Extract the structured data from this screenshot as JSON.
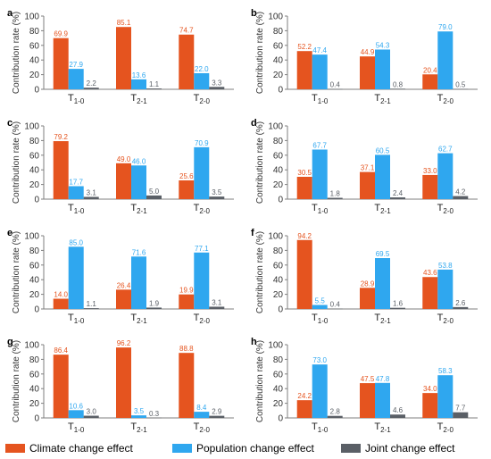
{
  "colors": {
    "climate": "#e5541f",
    "population": "#2fa7ef",
    "joint": "#5a5f66",
    "axis": "#7f7f7f"
  },
  "legend": [
    {
      "label": "Climate change effect",
      "color": "#e5541f"
    },
    {
      "label": "Population change effect",
      "color": "#2fa7ef"
    },
    {
      "label": "Joint change effect",
      "color": "#5a5f66"
    }
  ],
  "chart_data": [
    {
      "panel": "a",
      "type": "bar",
      "ylabel": "Contribution rate (%)",
      "ylim": [
        0,
        100
      ],
      "yticks": [
        0,
        20,
        40,
        60,
        80,
        100
      ],
      "categories": [
        "T1-0",
        "T2-1",
        "T2-0"
      ],
      "series": [
        {
          "name": "Climate change effect",
          "values": [
            69.9,
            85.1,
            74.7
          ]
        },
        {
          "name": "Population change effect",
          "values": [
            27.9,
            13.6,
            22.0
          ]
        },
        {
          "name": "Joint change effect",
          "values": [
            2.2,
            1.1,
            3.3
          ]
        }
      ]
    },
    {
      "panel": "b",
      "type": "bar",
      "ylabel": "Contribution rate (%)",
      "ylim": [
        0,
        100
      ],
      "yticks": [
        0,
        20,
        40,
        60,
        80,
        100
      ],
      "categories": [
        "T1-0",
        "T2-1",
        "T2-0"
      ],
      "series": [
        {
          "name": "Climate change effect",
          "values": [
            52.2,
            44.9,
            20.4
          ]
        },
        {
          "name": "Population change effect",
          "values": [
            47.4,
            54.3,
            79.0
          ]
        },
        {
          "name": "Joint change effect",
          "values": [
            0.4,
            0.8,
            0.5
          ]
        }
      ]
    },
    {
      "panel": "c",
      "type": "bar",
      "ylabel": "Contribution rate (%)",
      "ylim": [
        0,
        100
      ],
      "yticks": [
        0,
        20,
        40,
        60,
        80,
        100
      ],
      "categories": [
        "T1-0",
        "T2-1",
        "T2-0"
      ],
      "series": [
        {
          "name": "Climate change effect",
          "values": [
            79.2,
            49.0,
            25.6
          ]
        },
        {
          "name": "Population change effect",
          "values": [
            17.7,
            46.0,
            70.9
          ]
        },
        {
          "name": "Joint change effect",
          "values": [
            3.1,
            5.0,
            3.5
          ]
        }
      ]
    },
    {
      "panel": "d",
      "type": "bar",
      "ylabel": "Contribution rate (%)",
      "ylim": [
        0,
        100
      ],
      "yticks": [
        0,
        20,
        40,
        60,
        80,
        100
      ],
      "categories": [
        "T1-0",
        "T2-1",
        "T2-0"
      ],
      "series": [
        {
          "name": "Climate change effect",
          "values": [
            30.5,
            37.1,
            33.0
          ]
        },
        {
          "name": "Population change effect",
          "values": [
            67.7,
            60.5,
            62.7
          ]
        },
        {
          "name": "Joint change effect",
          "values": [
            1.8,
            2.4,
            4.2
          ]
        }
      ]
    },
    {
      "panel": "e",
      "type": "bar",
      "ylabel": "Contribution rate (%)",
      "ylim": [
        0,
        100
      ],
      "yticks": [
        0,
        20,
        40,
        60,
        80,
        100
      ],
      "categories": [
        "T1-0",
        "T2-1",
        "T2-0"
      ],
      "series": [
        {
          "name": "Climate change effect",
          "values": [
            14.0,
            26.4,
            19.9
          ]
        },
        {
          "name": "Population change effect",
          "values": [
            85.0,
            71.6,
            77.1
          ]
        },
        {
          "name": "Joint change effect",
          "values": [
            1.1,
            1.9,
            3.1
          ]
        }
      ]
    },
    {
      "panel": "f",
      "type": "bar",
      "ylabel": "Contribution rate (%)",
      "ylim": [
        0,
        100
      ],
      "yticks": [
        0,
        20,
        40,
        60,
        80,
        100
      ],
      "categories": [
        "T1-0",
        "T2-1",
        "T2-0"
      ],
      "series": [
        {
          "name": "Climate change effect",
          "values": [
            94.2,
            28.9,
            43.6
          ]
        },
        {
          "name": "Population change effect",
          "values": [
            5.5,
            69.5,
            53.8
          ]
        },
        {
          "name": "Joint change effect",
          "values": [
            0.4,
            1.6,
            2.6
          ]
        }
      ]
    },
    {
      "panel": "g",
      "type": "bar",
      "ylabel": "Contribution rate (%)",
      "ylim": [
        0,
        100
      ],
      "yticks": [
        0,
        20,
        40,
        60,
        80,
        100
      ],
      "categories": [
        "T1-0",
        "T2-1",
        "T2-0"
      ],
      "series": [
        {
          "name": "Climate change effect",
          "values": [
            86.4,
            96.2,
            88.8
          ]
        },
        {
          "name": "Population change effect",
          "values": [
            10.6,
            3.5,
            8.4
          ]
        },
        {
          "name": "Joint change effect",
          "values": [
            3.0,
            0.3,
            2.9
          ]
        }
      ]
    },
    {
      "panel": "h",
      "type": "bar",
      "ylabel": "Contribution rate (%)",
      "ylim": [
        0,
        100
      ],
      "yticks": [
        0,
        20,
        40,
        60,
        80,
        100
      ],
      "categories": [
        "T1-0",
        "T2-1",
        "T2-0"
      ],
      "series": [
        {
          "name": "Climate change effect",
          "values": [
            24.2,
            47.5,
            34.0
          ]
        },
        {
          "name": "Population change effect",
          "values": [
            73.0,
            47.8,
            58.3
          ]
        },
        {
          "name": "Joint change effect",
          "values": [
            2.8,
            4.6,
            7.7
          ]
        }
      ]
    }
  ]
}
